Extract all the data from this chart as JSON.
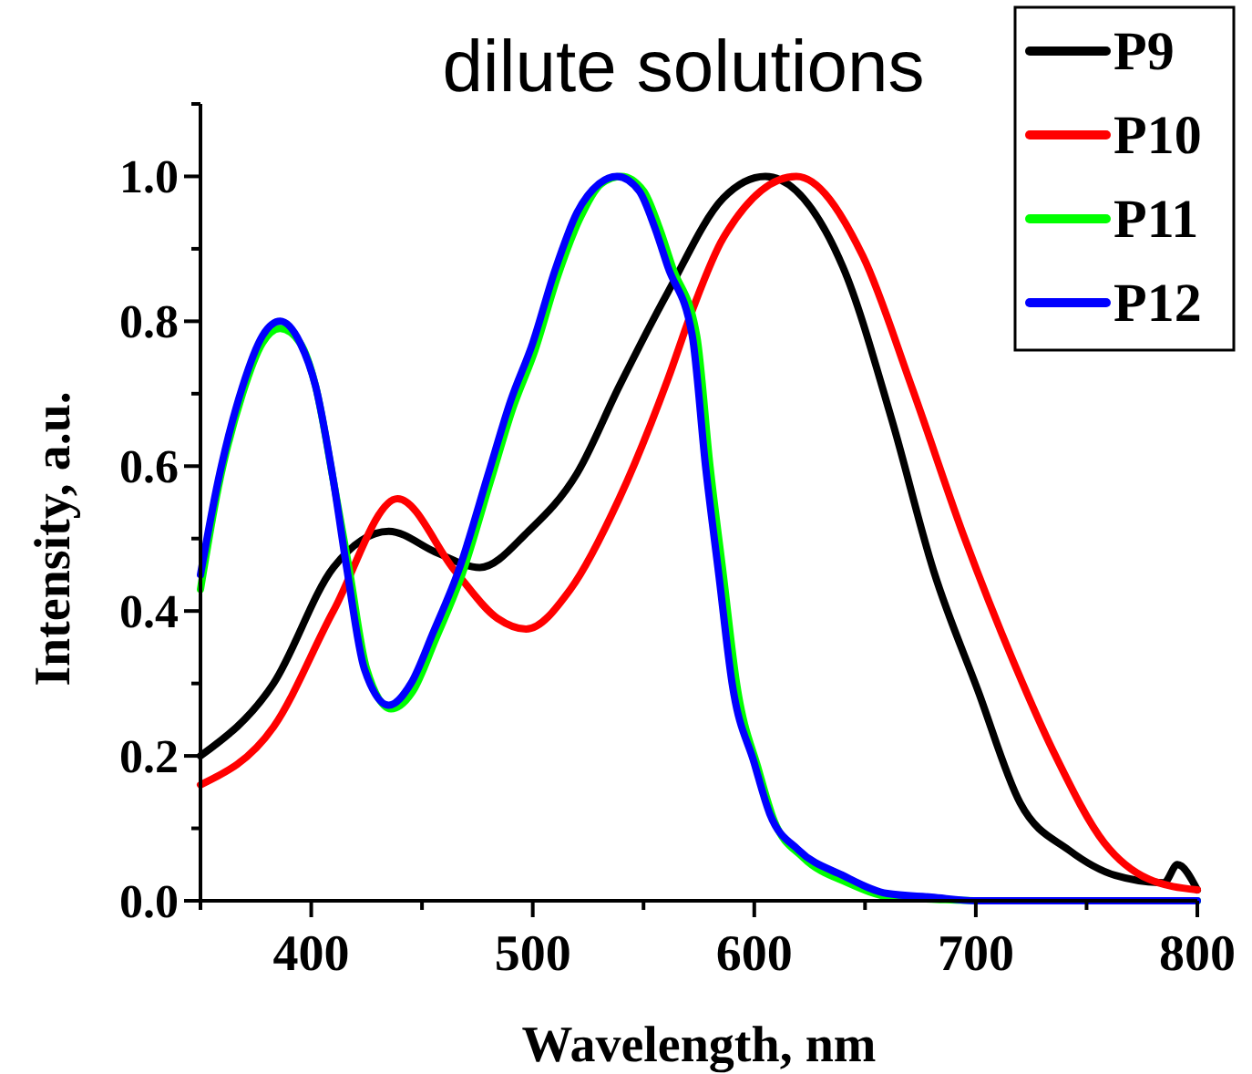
{
  "chart_data": {
    "type": "line",
    "title": "dilute solutions",
    "xlabel": "Wavelength, nm",
    "ylabel": "Intensity, a.u.",
    "xlim": [
      350,
      800
    ],
    "ylim": [
      0,
      1.1
    ],
    "xticks": [
      {
        "value": 350,
        "label": null
      },
      400,
      {
        "value": 450,
        "label": null
      },
      500,
      {
        "value": 550,
        "label": null
      },
      600,
      {
        "value": 650,
        "label": null
      },
      700,
      {
        "value": 750,
        "label": null
      },
      800
    ],
    "yticks": [
      "0.0",
      {
        "value": 0.1,
        "label": null
      },
      0.2,
      {
        "value": 0.3,
        "label": null
      },
      0.4,
      {
        "value": 0.5,
        "label": null
      },
      0.6,
      {
        "value": 0.7,
        "label": null
      },
      0.8,
      {
        "value": 0.9,
        "label": null
      },
      "1.0",
      {
        "value": 1.1,
        "label": null
      }
    ],
    "legend": "top right",
    "marker": "none",
    "line_style": "solid",
    "grid": false,
    "series": [
      {
        "name": "P9",
        "color": "#000000",
        "x": [
          350,
          383,
          410,
          435,
          457,
          476,
          498,
          520,
          539,
          561,
          586,
          605,
          640,
          662,
          681,
          701,
          720,
          742,
          763,
          785,
          791,
          800
        ],
        "values": [
          0.2,
          0.3,
          0.46,
          0.51,
          0.48,
          0.46,
          0.51,
          0.59,
          0.71,
          0.84,
          0.97,
          1.0,
          0.875,
          0.665,
          0.455,
          0.29,
          0.135,
          0.07,
          0.035,
          0.025,
          0.05,
          0.015
        ]
      },
      {
        "name": "P10",
        "color": "#ff0000",
        "x": [
          350,
          383,
          410,
          439,
          465,
          484,
          497,
          517,
          539,
          561,
          572,
          586,
          619,
          649,
          671,
          695,
          717,
          736,
          758,
          778,
          800
        ],
        "values": [
          0.16,
          0.24,
          0.4,
          0.555,
          0.455,
          0.39,
          0.375,
          0.43,
          0.555,
          0.72,
          0.815,
          0.915,
          1.0,
          0.89,
          0.71,
          0.5,
          0.33,
          0.2,
          0.08,
          0.03,
          0.015
        ]
      },
      {
        "name": "P11",
        "color": "#00ff00",
        "x": [
          350,
          358,
          369,
          378,
          386,
          395,
          402,
          410,
          417,
          425,
          436,
          446,
          456,
          468,
          481,
          491,
          501,
          511,
          521,
          531,
          540,
          550,
          557,
          563,
          574,
          580,
          586,
          592,
          602,
          609,
          622,
          642,
          662,
          682,
          702,
          750,
          800
        ],
        "values": [
          0.43,
          0.57,
          0.7,
          0.77,
          0.79,
          0.77,
          0.71,
          0.58,
          0.46,
          0.32,
          0.265,
          0.29,
          0.36,
          0.45,
          0.58,
          0.68,
          0.76,
          0.86,
          0.94,
          0.99,
          1.0,
          0.98,
          0.93,
          0.875,
          0.78,
          0.6,
          0.45,
          0.3,
          0.18,
          0.11,
          0.06,
          0.025,
          0.005,
          0.002,
          0.0,
          0.0,
          0.0
        ]
      },
      {
        "name": "P12",
        "color": "#0000ff",
        "x": [
          350,
          358,
          369,
          378,
          386,
          395,
          402,
          410,
          416,
          424,
          435,
          445,
          455,
          467,
          480,
          490,
          500,
          510,
          520,
          530,
          538,
          548,
          555,
          561,
          572,
          578,
          584,
          590,
          600,
          607,
          620,
          640,
          660,
          680,
          700,
          750,
          800
        ],
        "values": [
          0.45,
          0.58,
          0.71,
          0.78,
          0.8,
          0.77,
          0.71,
          0.58,
          0.46,
          0.32,
          0.27,
          0.3,
          0.37,
          0.46,
          0.59,
          0.69,
          0.77,
          0.87,
          0.95,
          0.99,
          1.0,
          0.98,
          0.93,
          0.875,
          0.78,
          0.6,
          0.45,
          0.3,
          0.19,
          0.12,
          0.07,
          0.035,
          0.01,
          0.005,
          0.0,
          0.0,
          0.0
        ]
      }
    ]
  }
}
